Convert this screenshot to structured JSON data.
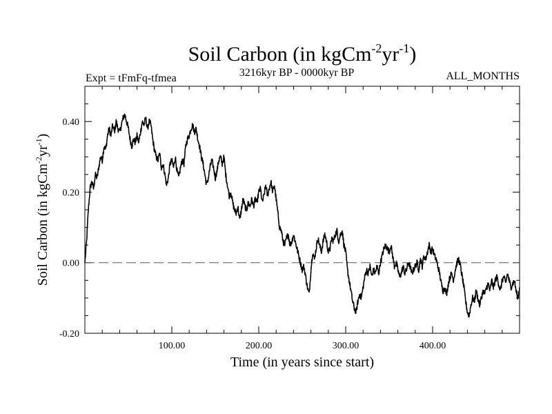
{
  "chart_data": {
    "type": "line",
    "title": {
      "main": "Soil Carbon (in kgCm",
      "sup1": "-2",
      "mid": "yr",
      "sup2": "-1",
      "end": ")"
    },
    "subtitle_left": "Expt = tFmFq-tfmea",
    "subtitle_center": "3216kyr BP - 0000kyr BP",
    "subtitle_right": "ALL_MONTHS",
    "xlabel": "Time (in years since start)",
    "ylabel": {
      "main": "Soil Carbon (in kgCm",
      "sup1": "-2",
      "mid": "yr",
      "sup2": "-1",
      "end": ")"
    },
    "xlim": [
      0,
      500
    ],
    "ylim": [
      -0.2,
      0.5
    ],
    "xticks": [
      100,
      200,
      300,
      400
    ],
    "xtick_labels": [
      "100.00",
      "200.00",
      "300.00",
      "400.00"
    ],
    "yticks": [
      -0.2,
      0.0,
      0.2,
      0.4
    ],
    "ytick_labels": [
      "-0.20",
      "0.00",
      "0.20",
      "0.40"
    ],
    "zero_line": {
      "y": 0.0,
      "style": "dashed",
      "color": "#555555"
    },
    "series": [
      {
        "name": "Soil Carbon",
        "color": "#000000",
        "anchors": [
          [
            0,
            0.0
          ],
          [
            2,
            0.06
          ],
          [
            4,
            0.15
          ],
          [
            6,
            0.21
          ],
          [
            8,
            0.23
          ],
          [
            10,
            0.21
          ],
          [
            12,
            0.25
          ],
          [
            14,
            0.24
          ],
          [
            16,
            0.27
          ],
          [
            18,
            0.3
          ],
          [
            20,
            0.29
          ],
          [
            22,
            0.33
          ],
          [
            24,
            0.32
          ],
          [
            26,
            0.36
          ],
          [
            28,
            0.38
          ],
          [
            30,
            0.36
          ],
          [
            32,
            0.39
          ],
          [
            34,
            0.37
          ],
          [
            36,
            0.4
          ],
          [
            38,
            0.38
          ],
          [
            40,
            0.37
          ],
          [
            42,
            0.39
          ],
          [
            44,
            0.41
          ],
          [
            46,
            0.42
          ],
          [
            48,
            0.4
          ],
          [
            50,
            0.38
          ],
          [
            52,
            0.35
          ],
          [
            54,
            0.33
          ],
          [
            56,
            0.35
          ],
          [
            58,
            0.34
          ],
          [
            60,
            0.36
          ],
          [
            62,
            0.34
          ],
          [
            64,
            0.37
          ],
          [
            66,
            0.4
          ],
          [
            68,
            0.39
          ],
          [
            70,
            0.41
          ],
          [
            72,
            0.38
          ],
          [
            74,
            0.4
          ],
          [
            76,
            0.39
          ],
          [
            78,
            0.35
          ],
          [
            80,
            0.32
          ],
          [
            82,
            0.3
          ],
          [
            84,
            0.29
          ],
          [
            86,
            0.31
          ],
          [
            88,
            0.27
          ],
          [
            90,
            0.28
          ],
          [
            92,
            0.25
          ],
          [
            94,
            0.22
          ],
          [
            96,
            0.24
          ],
          [
            98,
            0.28
          ],
          [
            100,
            0.29
          ],
          [
            102,
            0.27
          ],
          [
            104,
            0.3
          ],
          [
            106,
            0.26
          ],
          [
            108,
            0.24
          ],
          [
            110,
            0.27
          ],
          [
            112,
            0.29
          ],
          [
            114,
            0.28
          ],
          [
            116,
            0.33
          ],
          [
            118,
            0.35
          ],
          [
            120,
            0.36
          ],
          [
            122,
            0.38
          ],
          [
            124,
            0.39
          ],
          [
            126,
            0.37
          ],
          [
            128,
            0.38
          ],
          [
            130,
            0.35
          ],
          [
            132,
            0.33
          ],
          [
            134,
            0.3
          ],
          [
            136,
            0.28
          ],
          [
            138,
            0.25
          ],
          [
            140,
            0.22
          ],
          [
            142,
            0.24
          ],
          [
            144,
            0.27
          ],
          [
            146,
            0.29
          ],
          [
            148,
            0.27
          ],
          [
            150,
            0.24
          ],
          [
            152,
            0.26
          ],
          [
            154,
            0.29
          ],
          [
            156,
            0.3
          ],
          [
            158,
            0.28
          ],
          [
            160,
            0.3
          ],
          [
            162,
            0.25
          ],
          [
            164,
            0.22
          ],
          [
            166,
            0.19
          ],
          [
            168,
            0.2
          ],
          [
            170,
            0.17
          ],
          [
            172,
            0.15
          ],
          [
            174,
            0.14
          ],
          [
            176,
            0.16
          ],
          [
            178,
            0.12
          ],
          [
            180,
            0.15
          ],
          [
            182,
            0.18
          ],
          [
            184,
            0.16
          ],
          [
            186,
            0.15
          ],
          [
            188,
            0.17
          ],
          [
            190,
            0.16
          ],
          [
            192,
            0.18
          ],
          [
            194,
            0.16
          ],
          [
            196,
            0.18
          ],
          [
            198,
            0.17
          ],
          [
            200,
            0.2
          ],
          [
            202,
            0.21
          ],
          [
            204,
            0.17
          ],
          [
            206,
            0.19
          ],
          [
            208,
            0.22
          ],
          [
            210,
            0.19
          ],
          [
            212,
            0.21
          ],
          [
            214,
            0.23
          ],
          [
            216,
            0.2
          ],
          [
            218,
            0.22
          ],
          [
            220,
            0.18
          ],
          [
            222,
            0.14
          ],
          [
            224,
            0.1
          ],
          [
            226,
            0.09
          ],
          [
            228,
            0.06
          ],
          [
            230,
            0.05
          ],
          [
            232,
            0.07
          ],
          [
            234,
            0.08
          ],
          [
            236,
            0.05
          ],
          [
            238,
            0.06
          ],
          [
            240,
            0.08
          ],
          [
            242,
            0.06
          ],
          [
            244,
            0.04
          ],
          [
            246,
            0.02
          ],
          [
            248,
            0.0
          ],
          [
            250,
            -0.02
          ],
          [
            252,
            -0.01
          ],
          [
            254,
            -0.04
          ],
          [
            256,
            -0.07
          ],
          [
            258,
            -0.09
          ],
          [
            260,
            -0.02
          ],
          [
            262,
            0.03
          ],
          [
            264,
            0.01
          ],
          [
            266,
            0.04
          ],
          [
            268,
            0.07
          ],
          [
            270,
            0.05
          ],
          [
            272,
            0.03
          ],
          [
            274,
            0.06
          ],
          [
            276,
            0.08
          ],
          [
            278,
            0.06
          ],
          [
            280,
            0.03
          ],
          [
            282,
            0.04
          ],
          [
            284,
            0.07
          ],
          [
            286,
            0.06
          ],
          [
            288,
            0.08
          ],
          [
            290,
            0.09
          ],
          [
            292,
            0.06
          ],
          [
            294,
            0.08
          ],
          [
            296,
            0.09
          ],
          [
            298,
            0.05
          ],
          [
            300,
            0.03
          ],
          [
            302,
            -0.02
          ],
          [
            304,
            -0.05
          ],
          [
            306,
            -0.08
          ],
          [
            308,
            -0.11
          ],
          [
            310,
            -0.13
          ],
          [
            312,
            -0.14
          ],
          [
            314,
            -0.11
          ],
          [
            316,
            -0.09
          ],
          [
            318,
            -0.1
          ],
          [
            320,
            -0.07
          ],
          [
            322,
            -0.04
          ],
          [
            324,
            -0.02
          ],
          [
            326,
            -0.03
          ],
          [
            328,
            -0.01
          ],
          [
            330,
            -0.04
          ],
          [
            332,
            -0.02
          ],
          [
            334,
            -0.03
          ],
          [
            336,
            -0.01
          ],
          [
            338,
            -0.03
          ],
          [
            340,
            0.0
          ],
          [
            342,
            0.02
          ],
          [
            344,
            0.04
          ],
          [
            346,
            0.05
          ],
          [
            348,
            0.04
          ],
          [
            350,
            0.03
          ],
          [
            352,
            0.05
          ],
          [
            354,
            0.02
          ],
          [
            356,
            -0.01
          ],
          [
            358,
            0.0
          ],
          [
            360,
            -0.02
          ],
          [
            362,
            -0.04
          ],
          [
            364,
            -0.03
          ],
          [
            366,
            -0.01
          ],
          [
            368,
            -0.03
          ],
          [
            370,
            -0.02
          ],
          [
            372,
            0.0
          ],
          [
            374,
            -0.01
          ],
          [
            376,
            -0.03
          ],
          [
            378,
            -0.02
          ],
          [
            380,
            -0.01
          ],
          [
            382,
            0.0
          ],
          [
            384,
            -0.02
          ],
          [
            386,
            0.01
          ],
          [
            388,
            -0.01
          ],
          [
            390,
            0.02
          ],
          [
            392,
            0.01
          ],
          [
            394,
            0.03
          ],
          [
            396,
            0.05
          ],
          [
            398,
            0.03
          ],
          [
            400,
            0.04
          ],
          [
            402,
            0.02
          ],
          [
            404,
            0.01
          ],
          [
            406,
            -0.01
          ],
          [
            408,
            -0.03
          ],
          [
            410,
            -0.06
          ],
          [
            412,
            -0.08
          ],
          [
            414,
            -0.07
          ],
          [
            416,
            -0.09
          ],
          [
            418,
            -0.06
          ],
          [
            420,
            -0.04
          ],
          [
            422,
            -0.03
          ],
          [
            424,
            -0.05
          ],
          [
            426,
            -0.02
          ],
          [
            428,
            0.0
          ],
          [
            430,
            0.01
          ],
          [
            432,
            -0.01
          ],
          [
            434,
            -0.04
          ],
          [
            436,
            -0.07
          ],
          [
            438,
            -0.11
          ],
          [
            440,
            -0.14
          ],
          [
            442,
            -0.15
          ],
          [
            444,
            -0.12
          ],
          [
            446,
            -0.1
          ],
          [
            448,
            -0.11
          ],
          [
            450,
            -0.08
          ],
          [
            452,
            -0.1
          ],
          [
            454,
            -0.12
          ],
          [
            456,
            -0.1
          ],
          [
            458,
            -0.08
          ],
          [
            460,
            -0.09
          ],
          [
            462,
            -0.07
          ],
          [
            464,
            -0.06
          ],
          [
            466,
            -0.08
          ],
          [
            468,
            -0.05
          ],
          [
            470,
            -0.07
          ],
          [
            472,
            -0.05
          ],
          [
            474,
            -0.04
          ],
          [
            476,
            -0.06
          ],
          [
            478,
            -0.08
          ],
          [
            480,
            -0.05
          ],
          [
            482,
            -0.04
          ],
          [
            484,
            -0.06
          ],
          [
            486,
            -0.03
          ],
          [
            488,
            -0.05
          ],
          [
            490,
            -0.07
          ],
          [
            492,
            -0.06
          ],
          [
            494,
            -0.05
          ],
          [
            496,
            -0.08
          ],
          [
            498,
            -0.1
          ],
          [
            500,
            -0.07
          ]
        ]
      }
    ]
  }
}
